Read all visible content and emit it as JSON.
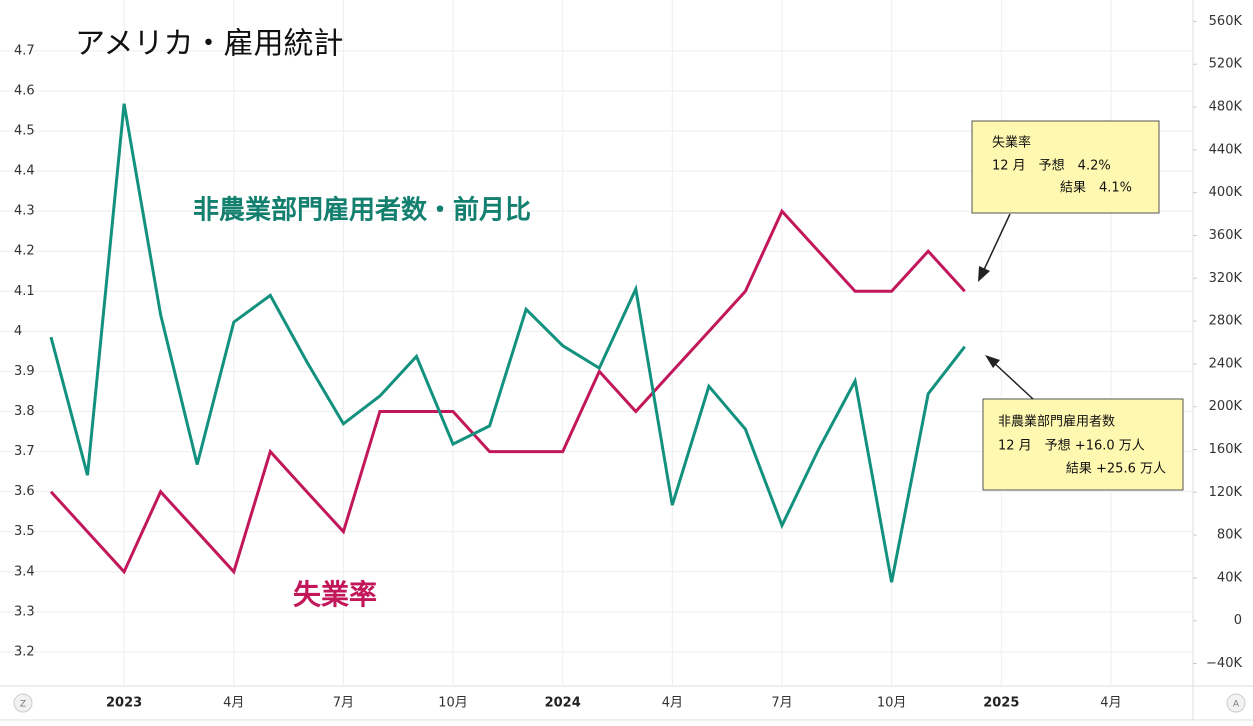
{
  "chart_data": {
    "type": "line",
    "title": "アメリカ・雇用統計",
    "categories": [
      null,
      null,
      "2023",
      null,
      null,
      "4月",
      null,
      null,
      "7月",
      null,
      null,
      "10月",
      null,
      null,
      "2024",
      null,
      null,
      "4月",
      null,
      null,
      "7月",
      null,
      null,
      "10月",
      null,
      null,
      "2025",
      null,
      null,
      "4月",
      null,
      null
    ],
    "series": [
      {
        "name": "失業率",
        "color": "#c2185b",
        "axis": "y",
        "values": [
          3.6,
          3.5,
          3.4,
          3.6,
          3.5,
          3.4,
          3.7,
          3.6,
          3.5,
          3.8,
          3.8,
          3.8,
          3.7,
          3.7,
          3.7,
          3.9,
          3.8,
          3.9,
          4.0,
          4.1,
          4.3,
          4.2,
          4.1,
          4.1,
          4.2,
          4.1,
          null,
          null,
          null,
          null,
          null,
          null
        ]
      },
      {
        "name": "非農業部門雇用者数・前月比",
        "color": "#13917f",
        "axis": "y2",
        "values": [
          265,
          136,
          483,
          286,
          146,
          279,
          304,
          242,
          184,
          210,
          247,
          165,
          182,
          291,
          257,
          236,
          310,
          108,
          219,
          179,
          89,
          160,
          224,
          36,
          212,
          256,
          null,
          null,
          null,
          null,
          null,
          null
        ]
      }
    ],
    "ylim": [
      3.115,
      4.827
    ],
    "yticks": [
      3.2,
      3.3,
      3.4,
      3.5,
      3.6,
      3.7,
      3.8,
      3.9,
      4,
      4.1,
      4.2,
      4.3,
      4.4,
      4.5,
      4.6,
      4.7
    ],
    "y2lim": [
      -61,
      580
    ],
    "y2ticks": [
      {
        "value": -40,
        "label": "−40K"
      },
      0,
      {
        "value": 40,
        "label": "40K"
      },
      {
        "value": 80,
        "label": "80K"
      },
      {
        "value": 120,
        "label": "120K"
      },
      {
        "value": 160,
        "label": "160K"
      },
      {
        "value": 200,
        "label": "200K"
      },
      {
        "value": 240,
        "label": "240K"
      },
      {
        "value": 280,
        "label": "280K"
      },
      {
        "value": 320,
        "label": "320K"
      },
      {
        "value": 360,
        "label": "360K"
      },
      {
        "value": 400,
        "label": "400K"
      },
      {
        "value": 440,
        "label": "440K"
      },
      {
        "value": 480,
        "label": "480K"
      },
      {
        "value": 520,
        "label": "520K"
      },
      {
        "value": 560,
        "label": "560K"
      }
    ],
    "grid": true,
    "annotations": [
      {
        "lines": [
          "失業率",
          "12 月　予想　4.2%",
          "結果　4.1%"
        ]
      },
      {
        "lines": [
          "非農業部門雇用者数",
          "12 月　予想 +16.0 万人",
          "結果 +25.6 万人"
        ]
      }
    ]
  },
  "controls": {
    "left": "Z",
    "right": "A"
  }
}
